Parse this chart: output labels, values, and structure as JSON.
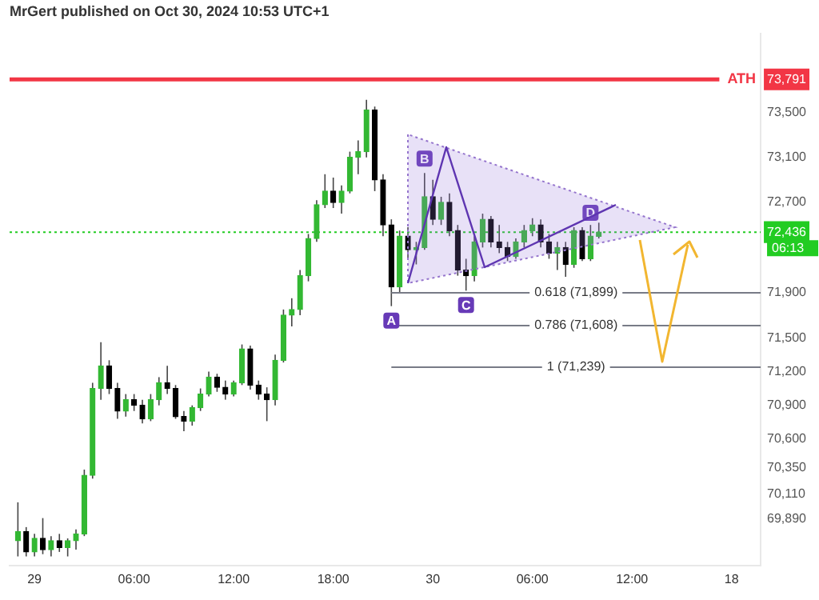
{
  "chart_data": {
    "type": "candlestick",
    "title": "MrGert published on Oct 30, 2024 10:53 UTC+1",
    "x": [
      "2024-10-28T23:00",
      "2024-10-28T23:30",
      "2024-10-29T00:00",
      "2024-10-29T00:30",
      "2024-10-29T01:00",
      "2024-10-29T01:30",
      "2024-10-29T02:00",
      "2024-10-29T02:30",
      "2024-10-29T03:00",
      "2024-10-29T03:30",
      "2024-10-29T04:00",
      "2024-10-29T04:30",
      "2024-10-29T05:00",
      "2024-10-29T05:30",
      "2024-10-29T06:00",
      "2024-10-29T06:30",
      "2024-10-29T07:00",
      "2024-10-29T07:30",
      "2024-10-29T08:00",
      "2024-10-29T08:30",
      "2024-10-29T09:00",
      "2024-10-29T09:30",
      "2024-10-29T10:00",
      "2024-10-29T10:30",
      "2024-10-29T11:00",
      "2024-10-29T11:30",
      "2024-10-29T12:00",
      "2024-10-29T12:30",
      "2024-10-29T13:00",
      "2024-10-29T13:30",
      "2024-10-29T14:00",
      "2024-10-29T14:30",
      "2024-10-29T15:00",
      "2024-10-29T15:30",
      "2024-10-29T16:00",
      "2024-10-29T16:30",
      "2024-10-29T17:00",
      "2024-10-29T17:30",
      "2024-10-29T18:00",
      "2024-10-29T18:30",
      "2024-10-29T19:00",
      "2024-10-29T19:30",
      "2024-10-29T20:00",
      "2024-10-29T20:30",
      "2024-10-29T21:00",
      "2024-10-29T21:30",
      "2024-10-29T22:00",
      "2024-10-29T22:30",
      "2024-10-29T23:00",
      "2024-10-29T23:30",
      "2024-10-30T00:00",
      "2024-10-30T00:30",
      "2024-10-30T01:00",
      "2024-10-30T01:30",
      "2024-10-30T02:00",
      "2024-10-30T02:30",
      "2024-10-30T03:00",
      "2024-10-30T03:30",
      "2024-10-30T04:00",
      "2024-10-30T04:30",
      "2024-10-30T05:00",
      "2024-10-30T05:30",
      "2024-10-30T06:00",
      "2024-10-30T06:30",
      "2024-10-30T07:00",
      "2024-10-30T07:30",
      "2024-10-30T08:00",
      "2024-10-30T08:30",
      "2024-10-30T09:00",
      "2024-10-30T09:30",
      "2024-10-30T10:00"
    ],
    "ohlc": [
      [
        69700,
        70040,
        69560,
        69780
      ],
      [
        69780,
        69820,
        69560,
        69600
      ],
      [
        69600,
        69760,
        69560,
        69720
      ],
      [
        69720,
        69900,
        69580,
        69620
      ],
      [
        69620,
        69740,
        69560,
        69700
      ],
      [
        69700,
        69760,
        69600,
        69640
      ],
      [
        69640,
        69720,
        69560,
        69700
      ],
      [
        69700,
        69800,
        69620,
        69760
      ],
      [
        69760,
        70330,
        69740,
        70280
      ],
      [
        70280,
        71100,
        70250,
        71050
      ],
      [
        71050,
        71460,
        70950,
        71250
      ],
      [
        71250,
        71300,
        71000,
        71050
      ],
      [
        71050,
        71100,
        70780,
        70850
      ],
      [
        70850,
        71000,
        70800,
        70950
      ],
      [
        70950,
        71000,
        70850,
        70900
      ],
      [
        70900,
        70950,
        70740,
        70780
      ],
      [
        70780,
        71000,
        70760,
        70950
      ],
      [
        70950,
        71150,
        70900,
        71100
      ],
      [
        71100,
        71250,
        71000,
        71050
      ],
      [
        71050,
        71080,
        70780,
        70800
      ],
      [
        70800,
        70850,
        70670,
        70760
      ],
      [
        70760,
        70900,
        70720,
        70880
      ],
      [
        70880,
        71050,
        70850,
        71000
      ],
      [
        71000,
        71200,
        70980,
        71150
      ],
      [
        71150,
        71180,
        71020,
        71060
      ],
      [
        71060,
        71120,
        70950,
        71000
      ],
      [
        71000,
        71120,
        70980,
        71100
      ],
      [
        71100,
        71440,
        71080,
        71400
      ],
      [
        71400,
        71430,
        71040,
        71080
      ],
      [
        71080,
        71120,
        70950,
        71000
      ],
      [
        71000,
        71060,
        70760,
        70950
      ],
      [
        70950,
        71350,
        70900,
        71300
      ],
      [
        71300,
        71750,
        71280,
        71700
      ],
      [
        71700,
        71850,
        71600,
        71750
      ],
      [
        71750,
        72100,
        71700,
        72050
      ],
      [
        72050,
        72420,
        72000,
        72380
      ],
      [
        72380,
        72720,
        72350,
        72680
      ],
      [
        72680,
        72950,
        72650,
        72800
      ],
      [
        72800,
        72920,
        72650,
        72700
      ],
      [
        72700,
        72850,
        72600,
        72800
      ],
      [
        72800,
        73150,
        72780,
        73100
      ],
      [
        73100,
        73250,
        72950,
        73150
      ],
      [
        73150,
        73610,
        73100,
        73520
      ],
      [
        73520,
        73550,
        72800,
        72900
      ],
      [
        72900,
        72950,
        72400,
        72500
      ],
      [
        72500,
        72550,
        71780,
        71950
      ],
      [
        71950,
        72450,
        71900,
        72400
      ],
      [
        72400,
        72480,
        72200,
        72280
      ],
      [
        72280,
        72350,
        72150,
        72300
      ],
      [
        72300,
        72960,
        72280,
        72750
      ],
      [
        72750,
        72900,
        72500,
        72550
      ],
      [
        72550,
        72750,
        72500,
        72700
      ],
      [
        72700,
        72780,
        72400,
        72450
      ],
      [
        72450,
        72500,
        72050,
        72100
      ],
      [
        72100,
        72200,
        71917,
        72050
      ],
      [
        72050,
        72400,
        72000,
        72350
      ],
      [
        72350,
        72600,
        72300,
        72550
      ],
      [
        72550,
        72580,
        72300,
        72350
      ],
      [
        72350,
        72500,
        72250,
        72300
      ],
      [
        72300,
        72350,
        72180,
        72220
      ],
      [
        72220,
        72380,
        72200,
        72350
      ],
      [
        72350,
        72500,
        72300,
        72450
      ],
      [
        72450,
        72560,
        72400,
        72500
      ],
      [
        72500,
        72550,
        72300,
        72350
      ],
      [
        72350,
        72420,
        72200,
        72250
      ],
      [
        72250,
        72350,
        72100,
        72300
      ],
      [
        72300,
        72350,
        72040,
        72150
      ],
      [
        72150,
        72480,
        72120,
        72450
      ],
      [
        72450,
        72480,
        72180,
        72200
      ],
      [
        72200,
        72500,
        72180,
        72400
      ],
      [
        72400,
        72520,
        72380,
        72436
      ]
    ],
    "colors": [
      "#33b833",
      "#000000",
      "#33b833",
      "#000000",
      "#33b833",
      "#000000",
      "#33b833",
      "#33b833",
      "#33b833",
      "#33b833",
      "#33b833",
      "#000000",
      "#000000",
      "#33b833",
      "#000000",
      "#000000",
      "#33b833",
      "#33b833",
      "#000000",
      "#000000",
      "#000000",
      "#33b833",
      "#33b833",
      "#33b833",
      "#000000",
      "#000000",
      "#33b833",
      "#33b833",
      "#000000",
      "#000000",
      "#000000",
      "#33b833",
      "#33b833",
      "#33b833",
      "#33b833",
      "#33b833",
      "#33b833",
      "#33b833",
      "#000000",
      "#33b833",
      "#33b833",
      "#33b833",
      "#33b833",
      "#000000",
      "#000000",
      "#000000",
      "#33b833",
      "#000000",
      "#33b833",
      "#33b833",
      "#000000",
      "#33b833",
      "#000000",
      "#000000",
      "#000000",
      "#33b833",
      "#33b833",
      "#000000",
      "#000000",
      "#000000",
      "#33b833",
      "#33b833",
      "#33b833",
      "#000000",
      "#000000",
      "#33b833",
      "#000000",
      "#33b833",
      "#000000",
      "#33b833",
      "#33b833"
    ],
    "xlim": [
      "2024-10-28T22:30",
      "2024-10-30T19:45"
    ],
    "xticks": [
      {
        "value": "2024-10-29T00:00",
        "label": "29"
      },
      {
        "value": "2024-10-29T06:00",
        "label": "06:00"
      },
      {
        "value": "2024-10-29T12:00",
        "label": "12:00"
      },
      {
        "value": "2024-10-29T18:00",
        "label": "18:00"
      },
      {
        "value": "2024-10-30T00:00",
        "label": "30"
      },
      {
        "value": "2024-10-30T06:00",
        "label": "06:00"
      },
      {
        "value": "2024-10-30T12:00",
        "label": "12:00"
      },
      {
        "value": "2024-10-30T18:00",
        "label": "18"
      }
    ],
    "ylim": [
      69480,
      74200
    ],
    "yticks": [
      {
        "value": 73791,
        "label": "73,791"
      },
      {
        "value": 73500,
        "label": "73,500"
      },
      {
        "value": 73100,
        "label": "73,100"
      },
      {
        "value": 72700,
        "label": "72,700"
      },
      {
        "value": 72436,
        "label": "72,436"
      },
      {
        "value": 71900,
        "label": "71,900"
      },
      {
        "value": 71500,
        "label": "71,500"
      },
      {
        "value": 71200,
        "label": "71,200"
      },
      {
        "value": 70900,
        "label": "70,900"
      },
      {
        "value": 70600,
        "label": "70,600"
      },
      {
        "value": 70350,
        "label": "70,350"
      },
      {
        "value": 70110,
        "label": "70,110"
      },
      {
        "value": 69890,
        "label": "69,890"
      }
    ],
    "ref_lines": [
      {
        "axis": "y",
        "value": 73791,
        "label": "ATH",
        "color": "#f23645",
        "line_style": "solid"
      },
      {
        "axis": "y",
        "value": 72436,
        "color": "#22cc22",
        "line_style": "dotted"
      },
      {
        "axis": "y",
        "value": 71899,
        "label": "0.618 (71,899)"
      },
      {
        "axis": "y",
        "value": 71608,
        "label": "0.786 (71,608)"
      },
      {
        "axis": "y",
        "value": 71239,
        "label": "1 (71,239)"
      }
    ],
    "annotations": [
      "06:13",
      {
        "text": "A",
        "x": "2024-10-29T21:30",
        "y": 71780
      },
      {
        "text": "B",
        "x": "2024-10-29T23:30",
        "y": 72960
      },
      {
        "text": "C",
        "x": "2024-10-30T02:00",
        "y": 71917
      },
      {
        "text": "D",
        "x": "2024-10-30T09:30",
        "y": 72480
      }
    ]
  }
}
